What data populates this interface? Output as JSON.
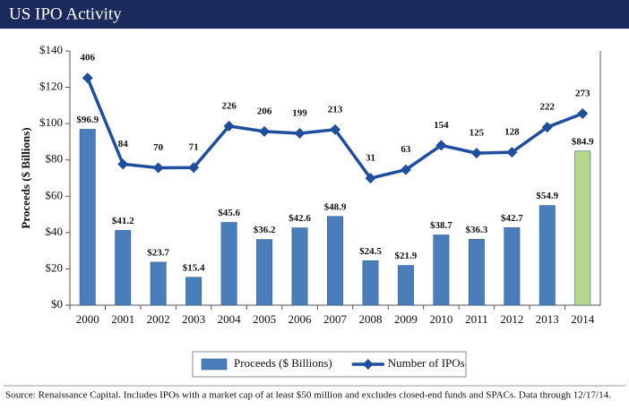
{
  "chart_data": {
    "type": "bar-line",
    "title": "US IPO Activity",
    "y_label": "Proceeds ($ Billions)",
    "source": "Source: Renaissance Capital. Includes IPOs with a market cap of at least $50 million and excludes closed-end funds and SPACs. Data through 12/17/14.",
    "categories": [
      "2000",
      "2001",
      "2002",
      "2003",
      "2004",
      "2005",
      "2006",
      "2007",
      "2008",
      "2009",
      "2010",
      "2011",
      "2012",
      "2013",
      "2014"
    ],
    "series": [
      {
        "name": "Proceeds ($ Billions)",
        "type": "bar",
        "color": "#4a7ebb",
        "colors": [
          "#4a7ebb",
          "#4a7ebb",
          "#4a7ebb",
          "#4a7ebb",
          "#4a7ebb",
          "#4a7ebb",
          "#4a7ebb",
          "#4a7ebb",
          "#4a7ebb",
          "#4a7ebb",
          "#4a7ebb",
          "#4a7ebb",
          "#4a7ebb",
          "#4a7ebb",
          "#b7d68b"
        ],
        "values": [
          96.9,
          41.2,
          23.7,
          15.4,
          45.6,
          36.2,
          42.6,
          48.9,
          24.5,
          21.9,
          38.7,
          36.3,
          42.7,
          54.9,
          84.9
        ],
        "value_labels": [
          "$96.9",
          "$41.2",
          "$23.7",
          "$15.4",
          "$45.6",
          "$36.2",
          "$42.6",
          "$48.9",
          "$24.5",
          "$21.9",
          "$38.7",
          "$36.3",
          "$42.7",
          "$54.9",
          "$84.9"
        ]
      },
      {
        "name": "Number of IPOs",
        "type": "line",
        "axis": "y2",
        "color": "#1f4e9e",
        "values": [
          406,
          84,
          70,
          71,
          226,
          206,
          199,
          213,
          31,
          63,
          154,
          125,
          128,
          222,
          273
        ]
      }
    ],
    "ylim": [
      0,
      140
    ],
    "yticks": [
      {
        "value": 0,
        "label": "$0"
      },
      {
        "value": 20,
        "label": "$20"
      },
      {
        "value": 40,
        "label": "$40"
      },
      {
        "value": 60,
        "label": "$60"
      },
      {
        "value": 80,
        "label": "$80"
      },
      {
        "value": 100,
        "label": "$100"
      },
      {
        "value": 120,
        "label": "$120"
      },
      {
        "value": 140,
        "label": "$140"
      }
    ],
    "y2lim": [
      -444,
      507
    ],
    "grid": false,
    "legend": "bottom"
  }
}
